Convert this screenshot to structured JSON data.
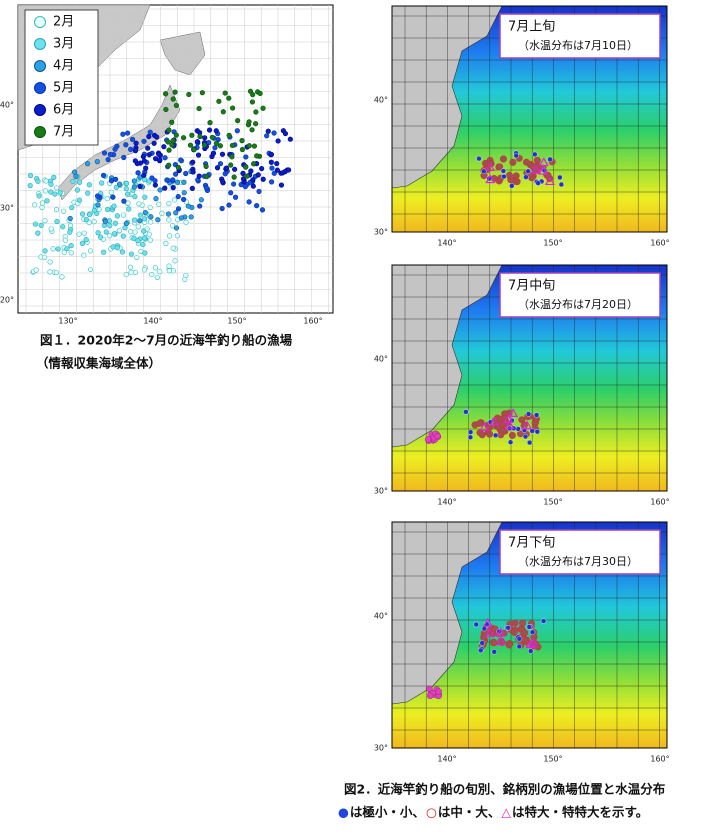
{
  "figure1": {
    "legend": [
      "2月",
      "3月",
      "4月",
      "5月",
      "6月",
      "7月"
    ],
    "lat_labels": [
      "40°",
      "30°",
      "20°"
    ],
    "lon_labels": [
      "130°",
      "140°",
      "150°",
      "160°"
    ],
    "caption": [
      "図１．2020年2～7月の近海竿釣り船の漁場",
      "（情報収集海域全体）"
    ]
  },
  "figure2": {
    "panels": [
      {
        "title": "7月上旬",
        "subtitle": "（水温分布は7月10日）",
        "lat_labels": [
          "40°",
          "30°"
        ],
        "lon_labels": [
          "140°",
          "150°",
          "160°"
        ]
      },
      {
        "title": "7月中旬",
        "subtitle": "（水温分布は7月20日）",
        "lat_labels": [
          "40°",
          "30°"
        ],
        "lon_labels": [
          "140°",
          "150°",
          "160°"
        ]
      },
      {
        "title": "7月下旬",
        "subtitle": "（水温分布は7月30日）",
        "lat_labels": [
          "40°",
          "30°"
        ],
        "lon_labels": [
          "140°",
          "150°",
          "160°"
        ]
      }
    ],
    "caption": "図2．近海竿釣り船の旬別、銘柄別の漁場位置と水温分布",
    "note": [
      {
        "symbol": "●",
        "text": "は極小・小、"
      },
      {
        "symbol": "○",
        "text": "は中・大、"
      },
      {
        "symbol": "△",
        "text": "は特大・特特大を示す。"
      }
    ]
  }
}
